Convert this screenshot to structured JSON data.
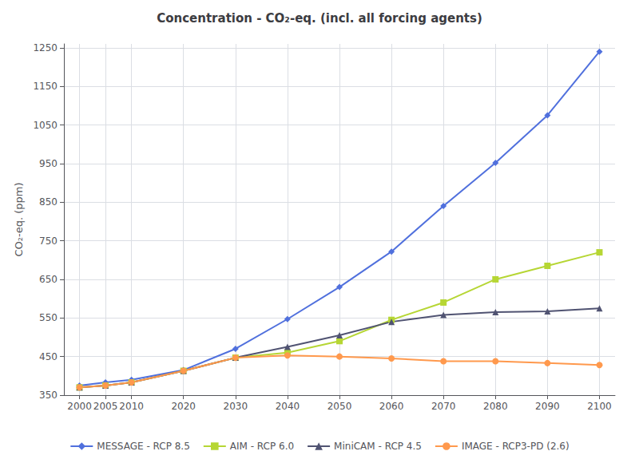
{
  "chart_data": {
    "type": "line",
    "title": "Concentration - CO₂-eq. (incl. all forcing agents)",
    "ylabel": "CO₂-eq. (ppm)",
    "x": [
      2000,
      2005,
      2010,
      2020,
      2030,
      2040,
      2050,
      2060,
      2070,
      2080,
      2090,
      2100
    ],
    "series": [
      {
        "name": "MESSAGE - RCP 8.5",
        "marker": "diamond",
        "values": [
          375,
          383,
          390,
          415,
          470,
          547,
          630,
          722,
          840,
          952,
          1075,
          1240
        ]
      },
      {
        "name": "AIM - RCP 6.0",
        "marker": "square",
        "values": [
          370,
          375,
          383,
          413,
          447,
          460,
          490,
          545,
          590,
          650,
          685,
          720
        ]
      },
      {
        "name": "MiniCAM - RCP 4.5",
        "marker": "triangle",
        "values": [
          370,
          375,
          383,
          413,
          447,
          475,
          505,
          540,
          558,
          565,
          567,
          575
        ]
      },
      {
        "name": "IMAGE - RCP3-PD (2.6)",
        "marker": "circle",
        "values": [
          370,
          375,
          383,
          413,
          447,
          453,
          450,
          445,
          438,
          438,
          433,
          428
        ]
      }
    ],
    "xlim": [
      1997,
      2103
    ],
    "xticks": [
      2000,
      2005,
      2010,
      2020,
      2030,
      2040,
      2050,
      2060,
      2070,
      2080,
      2090,
      2100
    ],
    "ylim": [
      350,
      1260
    ],
    "yticks": [
      350,
      450,
      550,
      650,
      750,
      850,
      950,
      1050,
      1150,
      1250
    ],
    "grid": true,
    "legend": "bottom"
  }
}
